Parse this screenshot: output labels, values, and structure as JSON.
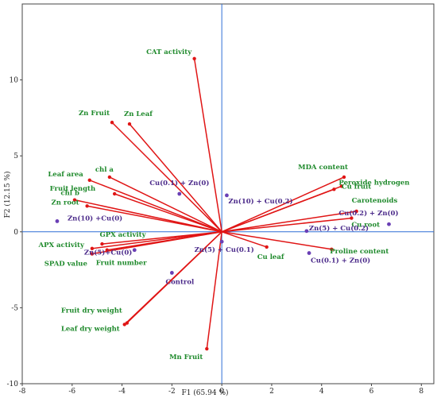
{
  "chart_data": {
    "type": "scatter",
    "subtype": "pca-biplot",
    "xlabel": "F1 (65.94 %)",
    "ylabel": "F2 (12.15 %)",
    "xlim": [
      -8,
      8.5
    ],
    "ylim": [
      -10,
      15
    ],
    "x_ticks": [
      -8,
      -6,
      -4,
      -2,
      0,
      2,
      4,
      6,
      8
    ],
    "y_ticks": [
      -10,
      -5,
      0,
      5,
      10
    ],
    "x_tick_labels": [
      "-8",
      "-6",
      "-4",
      "-2",
      "0",
      "2",
      "4",
      "6",
      "8"
    ],
    "y_tick_labels": [
      "-10",
      "-5",
      "0",
      "5",
      "10"
    ],
    "grid": false,
    "colors": {
      "vector": "#e01515",
      "vector_label": "#1f8a2c",
      "observation": "#6a3fb5",
      "observation_label": "#4b2a8a",
      "axis_line": "#2f6fd6",
      "frame": "#444444"
    },
    "variables": [
      {
        "name": "CAT activity",
        "x": -1.1,
        "y": 11.4
      },
      {
        "name": "Zn Fruit",
        "x": -4.4,
        "y": 7.2
      },
      {
        "name": "Zn Leaf",
        "x": -3.7,
        "y": 7.1
      },
      {
        "name": "Leaf area",
        "x": -5.3,
        "y": 3.4
      },
      {
        "name": "chl a",
        "x": -4.5,
        "y": 3.6
      },
      {
        "name": "Fruit length",
        "x": -4.3,
        "y": 2.5
      },
      {
        "name": "chl b",
        "x": -5.9,
        "y": 2.1
      },
      {
        "name": "Zn root",
        "x": -5.4,
        "y": 1.7
      },
      {
        "name": "GPX activity",
        "x": -4.8,
        "y": -0.8
      },
      {
        "name": "APX activity",
        "x": -5.2,
        "y": -1.1
      },
      {
        "name": "SPAD value",
        "x": -5.2,
        "y": -1.45
      },
      {
        "name": "Fruit number",
        "x": -4.6,
        "y": -1.2
      },
      {
        "name": "Fruit dry weight",
        "x": -3.8,
        "y": -6.0
      },
      {
        "name": "Leaf dry weight",
        "x": -3.9,
        "y": -6.1
      },
      {
        "name": "Mn Fruit",
        "x": -0.6,
        "y": -7.7
      },
      {
        "name": "Cu leaf",
        "x": 1.8,
        "y": -1.0
      },
      {
        "name": "Proline content",
        "x": 4.4,
        "y": -1.15
      },
      {
        "name": "Cu root",
        "x": 5.2,
        "y": 0.9
      },
      {
        "name": "Carotenoids",
        "x": 5.4,
        "y": 1.35
      },
      {
        "name": "Cu fruit",
        "x": 4.8,
        "y": 3.0
      },
      {
        "name": "MDA content",
        "x": 4.9,
        "y": 3.6
      },
      {
        "name": "Peroxide hydrogen",
        "x": 4.5,
        "y": 2.8
      }
    ],
    "observations": [
      {
        "name": "Cu(0.1) + Zn(0)",
        "x": -1.7,
        "y": 2.5
      },
      {
        "name": "Zn(10) + Cu(0.2)",
        "x": 0.2,
        "y": 2.4
      },
      {
        "name": "Zn(10) +Cu(0)",
        "x": -6.6,
        "y": 0.7
      },
      {
        "name": "Zn(5)+Cu(0)",
        "x": -3.5,
        "y": -1.2
      },
      {
        "name": "Control",
        "x": -2.0,
        "y": -2.7
      },
      {
        "name": "Zn(5) + Cu(0.1)",
        "x": 0.0,
        "y": -0.65
      },
      {
        "name": "Zn(5) + Cu(0.2)",
        "x": 3.4,
        "y": 0.05
      },
      {
        "name": "Cu(0.1) + Zn(0)",
        "x": 3.5,
        "y": -1.4
      },
      {
        "name": "Cu(0.2) + Zn(0)",
        "x": 6.7,
        "y": 0.5
      }
    ]
  }
}
